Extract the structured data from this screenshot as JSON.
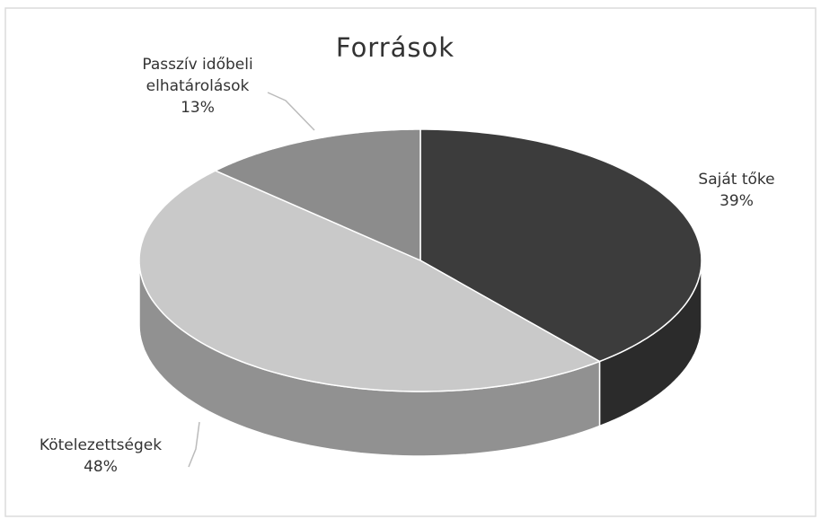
{
  "chart_data": {
    "type": "pie3d",
    "title": "Források",
    "categories": [
      "Saját tőke",
      "Kötelezettségek",
      "Passzív időbeli elhatárolások"
    ],
    "values": [
      39,
      48,
      13
    ],
    "value_labels": [
      "39%",
      "48%",
      "13%"
    ],
    "colors": [
      "#3c3c3c",
      "#c9c9c9",
      "#8c8c8c"
    ]
  }
}
